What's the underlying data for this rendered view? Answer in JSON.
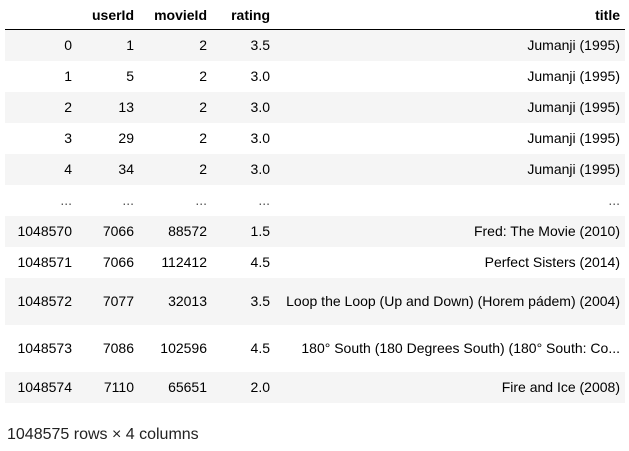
{
  "table": {
    "columns": [
      "",
      "userId",
      "movieId",
      "rating",
      "title"
    ],
    "rows": [
      {
        "index": "0",
        "userId": "1",
        "movieId": "2",
        "rating": "3.5",
        "title": "Jumanji (1995)"
      },
      {
        "index": "1",
        "userId": "5",
        "movieId": "2",
        "rating": "3.0",
        "title": "Jumanji (1995)"
      },
      {
        "index": "2",
        "userId": "13",
        "movieId": "2",
        "rating": "3.0",
        "title": "Jumanji (1995)"
      },
      {
        "index": "3",
        "userId": "29",
        "movieId": "2",
        "rating": "3.0",
        "title": "Jumanji (1995)"
      },
      {
        "index": "4",
        "userId": "34",
        "movieId": "2",
        "rating": "3.0",
        "title": "Jumanji (1995)"
      },
      {
        "index": "...",
        "userId": "...",
        "movieId": "...",
        "rating": "...",
        "title": "..."
      },
      {
        "index": "1048570",
        "userId": "7066",
        "movieId": "88572",
        "rating": "1.5",
        "title": "Fred: The Movie (2010)"
      },
      {
        "index": "1048571",
        "userId": "7066",
        "movieId": "112412",
        "rating": "4.5",
        "title": "Perfect Sisters (2014)"
      },
      {
        "index": "1048572",
        "userId": "7077",
        "movieId": "32013",
        "rating": "3.5",
        "title": "Loop the Loop (Up and Down) (Horem pádem) (2004)"
      },
      {
        "index": "1048573",
        "userId": "7086",
        "movieId": "102596",
        "rating": "4.5",
        "title": "180° South (180 Degrees South) (180° South: Co..."
      },
      {
        "index": "1048574",
        "userId": "7110",
        "movieId": "65651",
        "rating": "2.0",
        "title": "Fire and Ice (2008)"
      }
    ]
  },
  "shape": "1048575 rows × 4 columns"
}
